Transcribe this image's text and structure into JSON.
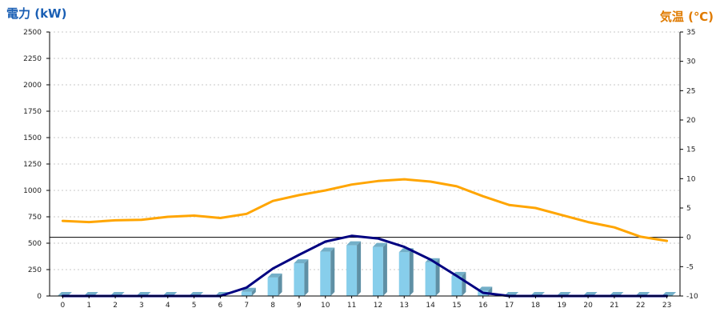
{
  "chart_data": {
    "type": "bar",
    "left_axis_title": "電力 (kW)",
    "right_axis_title": "気温 (℃)",
    "categories": [
      "0",
      "1",
      "2",
      "3",
      "4",
      "5",
      "6",
      "7",
      "8",
      "9",
      "10",
      "11",
      "12",
      "13",
      "14",
      "15",
      "16",
      "17",
      "18",
      "19",
      "20",
      "21",
      "22",
      "23"
    ],
    "x_tick_labels": [
      "0",
      "1",
      "2",
      "3",
      "4",
      "5",
      "6",
      "7",
      "8",
      "9",
      "10",
      "11",
      "12",
      "13",
      "14",
      "15",
      "16",
      "17",
      "18",
      "19",
      "20",
      "21",
      "22",
      "23"
    ],
    "y_left": {
      "min": 0,
      "max": 2500,
      "step": 250,
      "tick_labels": [
        "0",
        "250",
        "500",
        "750",
        "1000",
        "1250",
        "1500",
        "1750",
        "2000",
        "2250",
        "2500"
      ]
    },
    "y_right": {
      "min": -10,
      "max": 35,
      "step": 5,
      "tick_labels": [
        "-10",
        "-5",
        "0",
        "5",
        "10",
        "15",
        "20",
        "25",
        "30",
        "35"
      ]
    },
    "grid": true,
    "series": [
      {
        "type": "bar",
        "axis": "left",
        "color": "#87ceeb",
        "values": [
          0,
          0,
          0,
          0,
          0,
          0,
          0,
          40,
          175,
          310,
          420,
          480,
          465,
          415,
          320,
          190,
          50,
          0,
          0,
          0,
          0,
          0,
          0,
          0
        ]
      },
      {
        "type": "line",
        "axis": "left",
        "color": "#000080",
        "values": [
          0,
          0,
          0,
          0,
          0,
          0,
          0,
          80,
          260,
          390,
          515,
          570,
          545,
          465,
          345,
          190,
          30,
          0,
          0,
          0,
          0,
          0,
          0,
          0
        ]
      },
      {
        "type": "line",
        "axis": "right",
        "color": "#ffa500",
        "values": [
          2.8,
          2.6,
          2.9,
          3.0,
          3.5,
          3.7,
          3.3,
          4.0,
          6.2,
          7.2,
          8.0,
          9.0,
          9.6,
          9.9,
          9.5,
          8.7,
          7.0,
          5.5,
          5.0,
          3.8,
          2.6,
          1.7,
          0.1,
          -0.6
        ]
      }
    ],
    "reference_line": {
      "axis": "right",
      "value": 0,
      "color": "#000000"
    }
  }
}
